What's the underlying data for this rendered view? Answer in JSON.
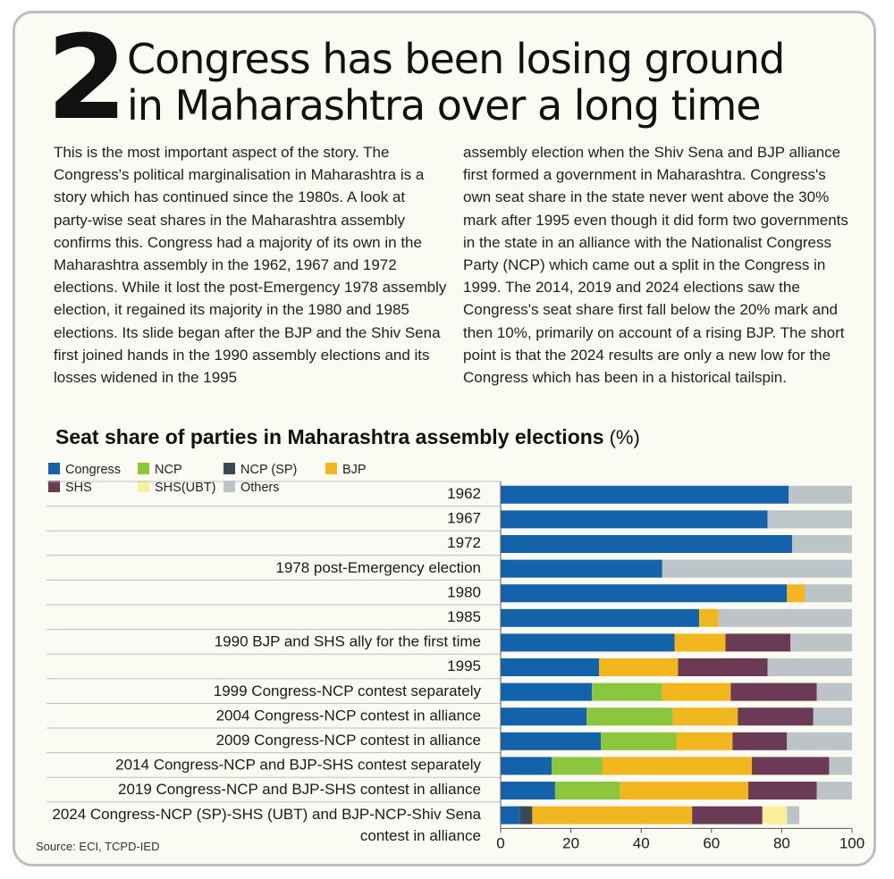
{
  "headline": {
    "number": "2",
    "line1": "Congress has been losing ground",
    "line2": "in Maharashtra over a long time"
  },
  "body": {
    "col1": "This is the most important aspect of the story. The Congress's political marginalisation in Maharashtra is a story which has continued since the 1980s. A look at party-wise seat shares in the Maharashtra assembly confirms this. Congress had a majority of its own in the Maharashtra assembly in the 1962, 1967 and 1972 elections. While it lost the post-Emergency 1978 assembly election, it regained its majority in the 1980 and 1985 elections. Its slide began after the BJP and the Shiv Sena first joined hands in the 1990 assembly elections and its losses widened in the 1995",
    "col2": "assembly election when the Shiv Sena and BJP alliance first formed a government in Maharashtra. Congress's own seat share in the state never went above the 30% mark after 1995 even though it did form two governments in the state in an alliance with the Nationalist Congress Party (NCP) which came out a split in the Congress in 1999. The 2014, 2019 and 2024 elections saw the Congress's seat share first fall below the 20% mark and then 10%, primarily on account of a rising BJP. The short point is that the 2024 results are only a new low for the Congress which has been in a historical tailspin."
  },
  "source": "Source: ECI, TCPD-IED",
  "chart_data": {
    "type": "bar",
    "orientation": "horizontal",
    "stacked": true,
    "title": "Seat share of parties in Maharashtra assembly elections",
    "unit": "(%)",
    "xlim": [
      0,
      100
    ],
    "xticks": [
      "0",
      "20",
      "40",
      "60",
      "80",
      "100"
    ],
    "grid": false,
    "legend_position": "top-left",
    "categories": [
      [
        "1962"
      ],
      [
        "1967"
      ],
      [
        "1972"
      ],
      [
        "1978 post-Emergency election"
      ],
      [
        "1980"
      ],
      [
        "1985"
      ],
      [
        "1990 BJP and SHS ally for the first time"
      ],
      [
        "1995"
      ],
      [
        "1999 Congress-NCP contest separately"
      ],
      [
        "2004 Congress-NCP contest in alliance"
      ],
      [
        "2009 Congress-NCP contest in alliance"
      ],
      [
        "2014 Congress-NCP and BJP-SHS contest separately"
      ],
      [
        "2019 Congress-NCP and BJP-SHS contest in alliance"
      ],
      [
        "2024 Congress-NCP (SP)-SHS (UBT) and BJP-NCP-Shiv Sena",
        "contest in alliance"
      ]
    ],
    "series": [
      {
        "name": "Congress",
        "color": "#1462a9",
        "values": [
          82,
          76,
          83,
          46,
          81.5,
          56.5,
          49.5,
          28,
          26,
          24.5,
          28.5,
          14.5,
          15.5,
          5.5
        ]
      },
      {
        "name": "NCP",
        "color": "#8cc63f",
        "values": [
          0,
          0,
          0,
          0,
          0,
          0,
          0,
          0,
          20,
          24.5,
          21.5,
          14.5,
          18.5,
          0
        ]
      },
      {
        "name": "NCP (SP)",
        "color": "#3a4a55",
        "values": [
          0,
          0,
          0,
          0,
          0,
          0,
          0,
          0,
          0,
          0,
          0,
          0,
          0,
          3.5
        ]
      },
      {
        "name": "BJP",
        "color": "#f2b61f",
        "values": [
          0,
          0,
          0,
          0,
          5,
          5.5,
          14.5,
          22.5,
          19.5,
          18.5,
          16,
          42.5,
          36.5,
          45.5
        ]
      },
      {
        "name": "SHS",
        "color": "#6b3a55",
        "values": [
          0,
          0,
          0,
          0,
          0,
          0,
          18.5,
          25.5,
          24.5,
          21.5,
          15.5,
          22,
          19.5,
          20
        ]
      },
      {
        "name": "SHS(UBT)",
        "color": "#fbef9a",
        "values": [
          0,
          0,
          0,
          0,
          0,
          0,
          0,
          0,
          0,
          0,
          0,
          0,
          0,
          7
        ]
      },
      {
        "name": "Others",
        "color": "#bcc4c8",
        "values": [
          18,
          24,
          17,
          54,
          13.5,
          38,
          17.5,
          24,
          10,
          11,
          18.5,
          6.5,
          10,
          3.5
        ]
      }
    ]
  }
}
